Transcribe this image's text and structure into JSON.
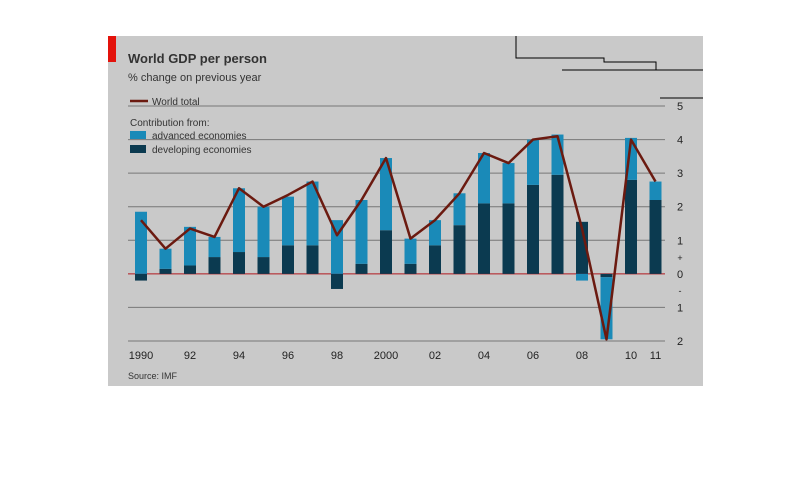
{
  "chart_data": {
    "type": "bar",
    "title": "World GDP per person",
    "subtitle": "% change on previous year",
    "source": "Source: IMF",
    "legend_heading": "Contribution from:",
    "sign_labels": [
      "+",
      "-"
    ],
    "categories": [
      "1990",
      null,
      "92",
      null,
      "94",
      null,
      "96",
      null,
      "98",
      null,
      "2000",
      null,
      "02",
      null,
      "04",
      null,
      "06",
      null,
      "08",
      null,
      "10",
      "11"
    ],
    "series": [
      {
        "name": "World total",
        "type": "line",
        "color": "#6b1a10",
        "values": [
          1.6,
          0.75,
          1.35,
          1.1,
          2.55,
          2.0,
          2.35,
          2.75,
          1.15,
          2.2,
          3.45,
          1.05,
          1.6,
          2.4,
          3.6,
          3.3,
          4.0,
          4.1,
          1.35,
          -1.95,
          4.0,
          2.75
        ]
      },
      {
        "name": "advanced economies",
        "type": "bar",
        "color": "#1a8ab8",
        "values": [
          1.85,
          0.6,
          1.15,
          0.6,
          1.9,
          1.5,
          1.45,
          1.9,
          1.6,
          1.9,
          2.15,
          0.75,
          0.75,
          0.95,
          1.5,
          1.2,
          1.35,
          1.2,
          -0.2,
          -1.85,
          1.25,
          0.55
        ]
      },
      {
        "name": "developing economies",
        "type": "bar",
        "color": "#0b3a50",
        "values": [
          -0.2,
          0.15,
          0.25,
          0.5,
          0.65,
          0.5,
          0.85,
          0.85,
          -0.45,
          0.3,
          1.3,
          0.3,
          0.85,
          1.45,
          2.1,
          2.1,
          2.65,
          2.95,
          1.55,
          -0.1,
          2.8,
          2.2
        ]
      }
    ],
    "ylim": [
      -2,
      5
    ],
    "yticks": [
      5,
      4,
      3,
      2,
      1,
      0,
      {
        "value": -1,
        "label": "1"
      },
      {
        "value": -2,
        "label": "2"
      }
    ],
    "grid": true
  }
}
